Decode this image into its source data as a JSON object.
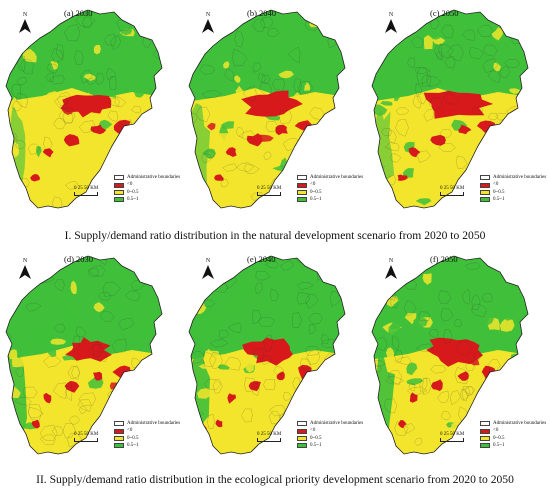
{
  "north_letter": "N",
  "scale_text": "0 25 50 KM",
  "legend": {
    "items": [
      {
        "label": "Administrative boundaries",
        "color": "#ffffff"
      },
      {
        "label": "<0",
        "color": "#d7191c"
      },
      {
        "label": "0~0.5",
        "color": "#f2e52b"
      },
      {
        "label": "0.5~1",
        "color": "#3fbf3a"
      }
    ]
  },
  "colors": {
    "deficit": "#d7191c",
    "low": "#f2e52b",
    "surplus": "#3fbf3a",
    "boundary": "#333333"
  },
  "panels": [
    {
      "label": "(a) 2030",
      "scenario": "natural",
      "year": 2030
    },
    {
      "label": "(b) 2040",
      "scenario": "natural",
      "year": 2040
    },
    {
      "label": "(c) 2050",
      "scenario": "natural",
      "year": 2050
    },
    {
      "label": "(d) 2030",
      "scenario": "ecological",
      "year": 2030
    },
    {
      "label": "(e) 2040",
      "scenario": "ecological",
      "year": 2040
    },
    {
      "label": "(f) 2050",
      "scenario": "ecological",
      "year": 2050
    }
  ],
  "captions": {
    "natural": "I. Supply/demand ratio distribution in the natural development scenario from 2020 to 2050",
    "ecological": "II. Supply/demand ratio distribution in the ecological priority development scenario from 2020 to 2050"
  }
}
